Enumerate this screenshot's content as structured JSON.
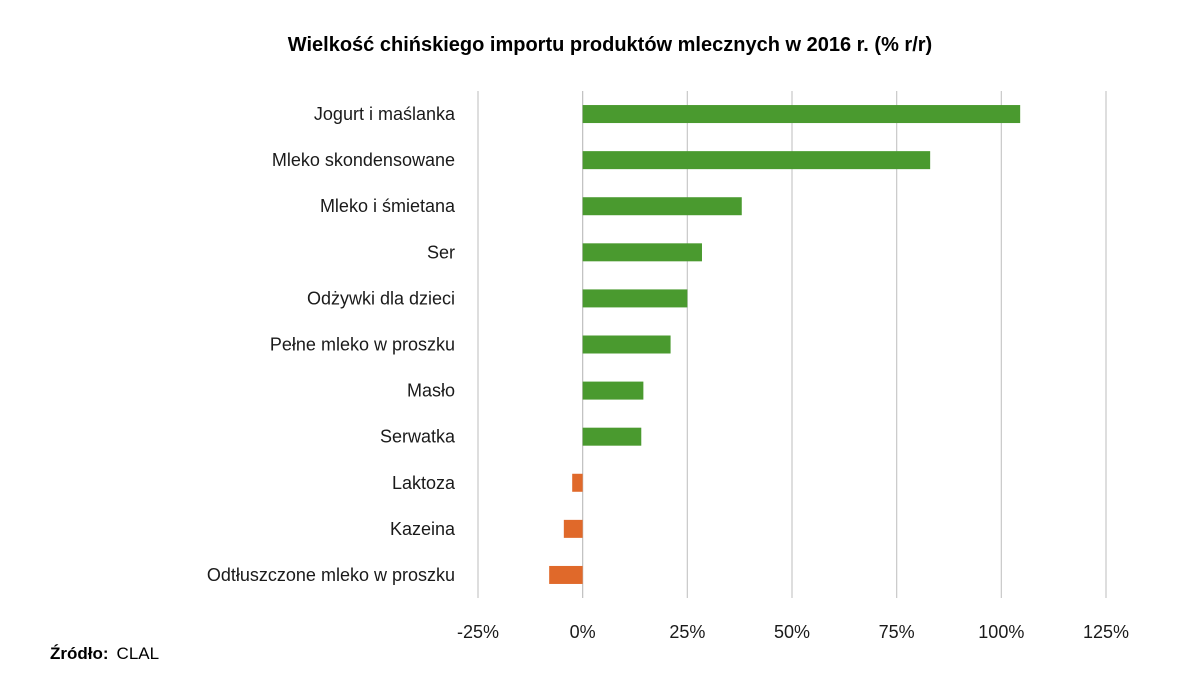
{
  "chart_data": {
    "type": "bar",
    "orientation": "horizontal",
    "title": "Wielkość chińskiego importu produktów mlecznych w 2016 r. (% r/r)",
    "categories": [
      "Jogurt i maślanka",
      "Mleko skondensowane",
      "Mleko i śmietana",
      "Ser",
      "Odżywki dla dzieci",
      "Pełne mleko w proszku",
      "Masło",
      "Serwatka",
      "Laktoza",
      "Kazeina",
      "Odtłuszczone mleko w proszku"
    ],
    "values": [
      104.5,
      83,
      38,
      28.5,
      25,
      21,
      14.5,
      14,
      -2.5,
      -4.5,
      -8
    ],
    "xlim": [
      -25,
      125
    ],
    "xticks": [
      -25,
      0,
      25,
      50,
      75,
      100,
      125
    ],
    "xtick_labels": [
      "-25%",
      "0%",
      "25%",
      "50%",
      "75%",
      "100%",
      "125%"
    ],
    "grid": "vertical",
    "legend": "none",
    "colors": {
      "positive": "#4a9a2f",
      "negative": "#e0692a",
      "grid": "#c8c8c8",
      "zero_line": "#bfbfbf"
    }
  },
  "source": {
    "label": "Źródło:",
    "value": "CLAL"
  }
}
